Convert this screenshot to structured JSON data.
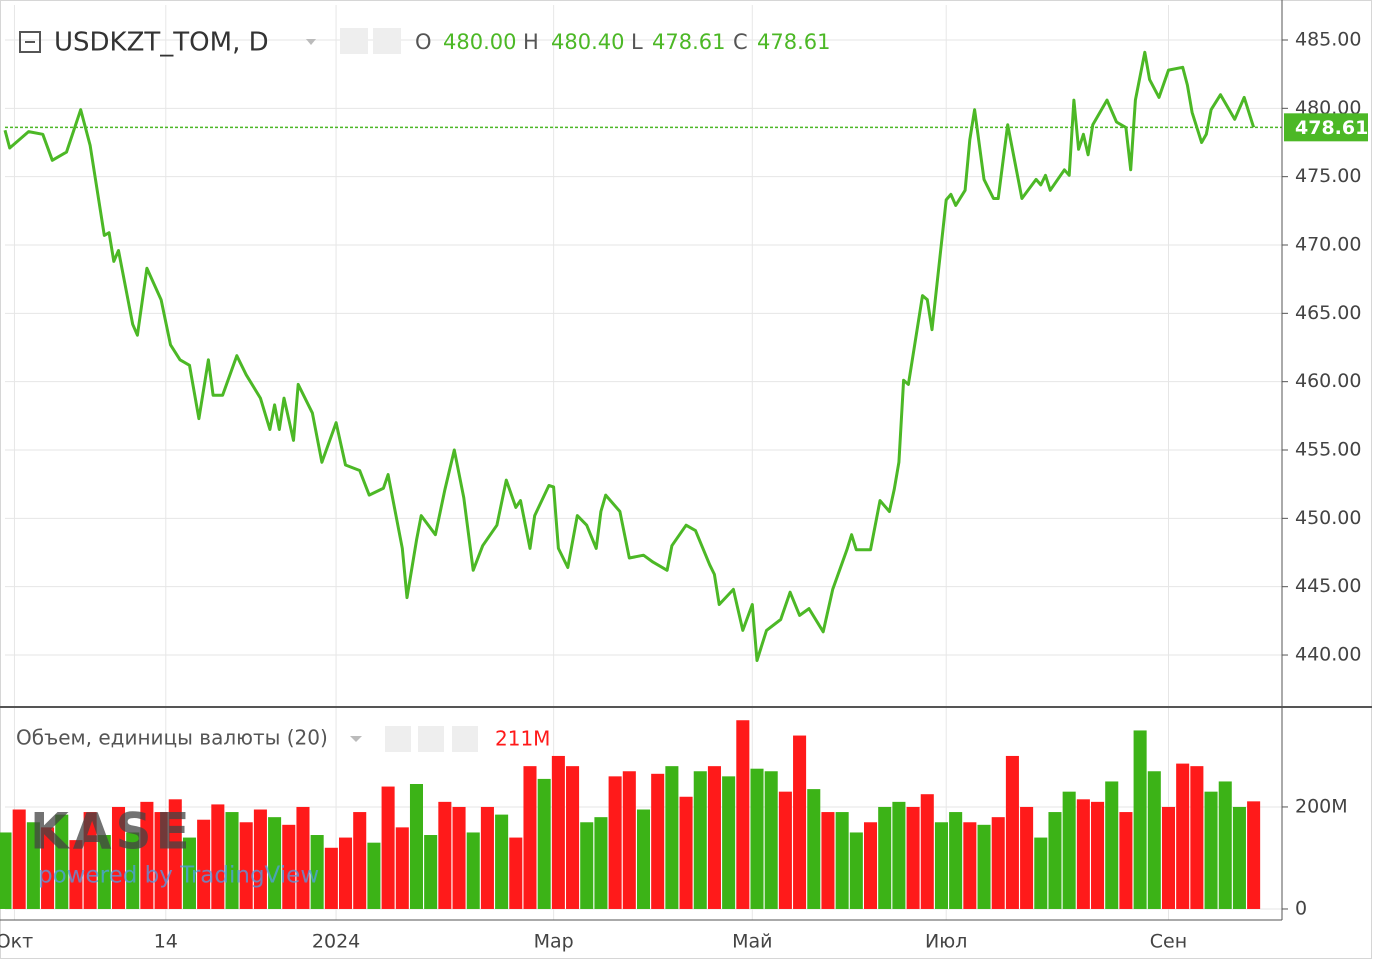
{
  "chart_data": [
    {
      "type": "line",
      "title": "USDKZT_TOM, D",
      "ohlc": [
        {
          "label": "O",
          "value": "480.00"
        },
        {
          "label": "H",
          "value": "480.40"
        },
        {
          "label": "L",
          "value": "478.61"
        },
        {
          "label": "C",
          "value": "478.61"
        }
      ],
      "color": "#4cb826",
      "xlim": [
        0,
        270
      ],
      "ylim": [
        436.27,
        487.56
      ],
      "yticks": [
        {
          "value": 440,
          "label": "440.00"
        },
        {
          "value": 445,
          "label": "445.00"
        },
        {
          "value": 450,
          "label": "450.00"
        },
        {
          "value": 455,
          "label": "455.00"
        },
        {
          "value": 460,
          "label": "460.00"
        },
        {
          "value": 465,
          "label": "465.00"
        },
        {
          "value": 470,
          "label": "470.00"
        },
        {
          "value": 475,
          "label": "475.00"
        },
        {
          "value": 480,
          "label": "480.00"
        },
        {
          "value": 485,
          "label": "485.00"
        }
      ],
      "grid": true,
      "x": [
        0,
        1,
        5,
        8,
        10,
        13,
        16,
        18,
        21,
        22,
        23,
        24,
        27,
        28,
        30,
        33,
        35,
        37,
        39,
        41,
        43,
        44,
        46,
        49,
        51,
        54,
        56,
        57,
        58,
        59,
        61,
        62,
        65,
        67,
        70,
        72,
        75,
        77,
        80,
        81,
        84,
        85,
        87,
        88,
        91,
        93,
        95,
        97,
        99,
        101,
        104,
        106,
        108,
        109,
        111,
        112,
        115,
        116,
        117,
        119,
        121,
        123,
        125,
        126,
        127,
        130,
        132,
        135,
        137,
        140,
        141,
        144,
        146,
        149,
        150,
        151,
        154,
        156,
        158,
        159,
        161,
        164,
        166,
        168,
        170,
        173,
        175,
        178,
        179,
        180,
        183,
        185,
        187,
        188,
        189,
        190,
        191,
        194,
        195,
        196,
        199,
        200,
        201,
        203,
        204,
        205,
        207,
        209,
        210,
        212,
        215,
        218,
        219,
        220,
        221,
        224,
        225,
        226,
        227,
        228,
        229,
        230,
        233,
        235,
        237,
        238,
        239,
        241,
        242,
        244,
        246,
        249,
        250,
        251,
        253,
        254,
        255,
        257,
        260,
        262,
        264
      ],
      "values": [
        478.4,
        477.1,
        478.3,
        478.1,
        476.2,
        476.8,
        479.9,
        477.3,
        470.7,
        470.9,
        468.8,
        469.6,
        464.2,
        463.4,
        468.3,
        466.0,
        462.7,
        461.6,
        461.2,
        457.3,
        461.6,
        459.0,
        459.0,
        461.9,
        460.5,
        458.8,
        456.5,
        458.3,
        456.5,
        458.8,
        455.7,
        459.8,
        457.7,
        454.1,
        457.0,
        453.9,
        453.5,
        451.7,
        452.2,
        453.2,
        447.8,
        444.2,
        448.4,
        450.2,
        448.8,
        452.1,
        455.0,
        451.5,
        446.2,
        448.0,
        449.5,
        452.8,
        450.8,
        451.3,
        447.8,
        450.2,
        452.4,
        452.3,
        447.8,
        446.4,
        450.2,
        449.5,
        447.8,
        450.5,
        451.7,
        450.5,
        447.1,
        447.3,
        446.8,
        446.2,
        448.0,
        449.5,
        449.1,
        446.6,
        445.9,
        443.7,
        444.8,
        441.8,
        443.7,
        439.6,
        441.8,
        442.6,
        444.6,
        442.9,
        443.4,
        441.7,
        444.8,
        447.7,
        448.8,
        447.7,
        447.7,
        451.3,
        450.5,
        452.1,
        454.1,
        460.1,
        459.8,
        466.3,
        466.0,
        463.8,
        473.3,
        473.7,
        472.9,
        474.0,
        477.7,
        479.9,
        474.8,
        473.4,
        473.4,
        478.8,
        473.4,
        474.8,
        474.4,
        475.1,
        474.0,
        475.5,
        475.1,
        480.6,
        477.0,
        478.1,
        476.6,
        478.8,
        480.6,
        479.0,
        478.6,
        475.5,
        480.6,
        484.1,
        482.1,
        480.8,
        482.8,
        483.0,
        481.7,
        479.7,
        477.5,
        478.1,
        479.9,
        481.0,
        479.2,
        480.8,
        478.61
      ]
    },
    {
      "type": "bar",
      "title": "Объем, единицы валюты (20)",
      "legend_value": "211M",
      "xlim": [
        0,
        270
      ],
      "xticks": [
        {
          "value": 2,
          "label": "Окт"
        },
        {
          "value": 34,
          "label": "14"
        },
        {
          "value": 70,
          "label": "2024"
        },
        {
          "value": 116,
          "label": "Мар"
        },
        {
          "value": 158,
          "label": "Май"
        },
        {
          "value": 199,
          "label": "Июл"
        },
        {
          "value": 246,
          "label": "Сен"
        }
      ],
      "ylim": [
        -21.6,
        394
      ],
      "yticks": [
        0,
        {
          "value": 200,
          "label": "200M"
        }
      ],
      "grid": true,
      "x": [
        0,
        3,
        6,
        9,
        12,
        15,
        18,
        21,
        24,
        27,
        30,
        33,
        36,
        39,
        42,
        45,
        48,
        51,
        54,
        57,
        60,
        63,
        66,
        69,
        72,
        75,
        78,
        81,
        84,
        87,
        90,
        93,
        96,
        99,
        102,
        105,
        108,
        111,
        114,
        117,
        120,
        123,
        126,
        129,
        132,
        135,
        138,
        141,
        144,
        147,
        150,
        153,
        156,
        159,
        162,
        165,
        168,
        171,
        174,
        177,
        180,
        183,
        186,
        189,
        192,
        195,
        198,
        201,
        204,
        207,
        210,
        213,
        216,
        219,
        222,
        225,
        228,
        231,
        234,
        237,
        240,
        243,
        246,
        249,
        252,
        255,
        258,
        261,
        264
      ],
      "values": [
        150,
        195,
        170,
        160,
        185,
        135,
        190,
        145,
        200,
        150,
        210,
        190,
        215,
        140,
        175,
        205,
        190,
        170,
        195,
        180,
        165,
        200,
        145,
        120,
        140,
        190,
        130,
        240,
        160,
        245,
        145,
        210,
        200,
        150,
        200,
        185,
        140,
        280,
        255,
        300,
        280,
        170,
        180,
        260,
        270,
        195,
        265,
        280,
        220,
        270,
        280,
        260,
        370,
        275,
        270,
        230,
        340,
        235,
        190,
        190,
        150,
        170,
        200,
        210,
        200,
        225,
        170,
        190,
        170,
        165,
        180,
        300,
        200,
        140,
        190,
        230,
        215,
        210,
        250,
        190,
        350,
        270,
        200,
        285,
        280,
        230,
        250,
        200,
        211
      ],
      "colors": [
        "#3cb317",
        "#ff1a1a",
        "#3cb317",
        "#ff1a1a",
        "#3cb317",
        "#ff1a1a",
        "#ff1a1a",
        "#3cb317",
        "#ff1a1a",
        "#3cb317",
        "#ff1a1a",
        "#ff1a1a",
        "#ff1a1a",
        "#3cb317",
        "#ff1a1a",
        "#ff1a1a",
        "#3cb317",
        "#ff1a1a",
        "#ff1a1a",
        "#3cb317",
        "#ff1a1a",
        "#ff1a1a",
        "#3cb317",
        "#ff1a1a",
        "#ff1a1a",
        "#ff1a1a",
        "#3cb317",
        "#ff1a1a",
        "#ff1a1a",
        "#3cb317",
        "#3cb317",
        "#ff1a1a",
        "#ff1a1a",
        "#3cb317",
        "#ff1a1a",
        "#3cb317",
        "#ff1a1a",
        "#ff1a1a",
        "#3cb317",
        "#ff1a1a",
        "#ff1a1a",
        "#3cb317",
        "#3cb317",
        "#ff1a1a",
        "#ff1a1a",
        "#3cb317",
        "#ff1a1a",
        "#3cb317",
        "#ff1a1a",
        "#3cb317",
        "#ff1a1a",
        "#3cb317",
        "#ff1a1a",
        "#3cb317",
        "#3cb317",
        "#ff1a1a",
        "#ff1a1a",
        "#3cb317",
        "#ff1a1a",
        "#3cb317",
        "#3cb317",
        "#ff1a1a",
        "#3cb317",
        "#3cb317",
        "#ff1a1a",
        "#ff1a1a",
        "#3cb317",
        "#3cb317",
        "#ff1a1a",
        "#3cb317",
        "#ff1a1a",
        "#ff1a1a",
        "#ff1a1a",
        "#3cb317",
        "#3cb317",
        "#3cb317",
        "#ff1a1a",
        "#ff1a1a",
        "#3cb317",
        "#ff1a1a",
        "#3cb317",
        "#3cb317",
        "#ff1a1a",
        "#ff1a1a",
        "#ff1a1a",
        "#3cb317",
        "#3cb317",
        "#3cb317",
        "#ff1a1a"
      ]
    }
  ],
  "watermark": {
    "logo": "KASE",
    "tagline": "powered by TradingView"
  }
}
